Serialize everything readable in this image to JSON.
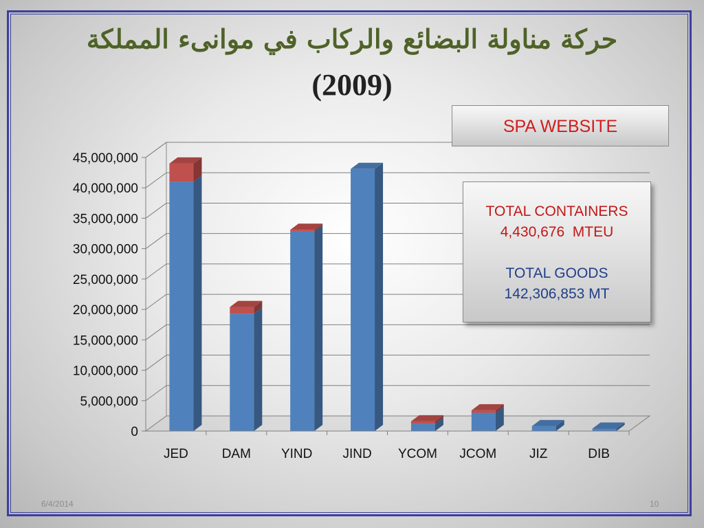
{
  "slide": {
    "title": "حركة مناولة البضائع والركاب في موانىء المملكة",
    "year": "(2009)",
    "footer_date": "6/4/2014",
    "page_number": "10"
  },
  "boxes": {
    "spa": "SPA WEBSITE",
    "containers_label": "TOTAL CONTAINERS",
    "containers_value": "4,430,676  MTEU",
    "goods_label": "TOTAL GOODS",
    "goods_value": "142,306,853 MT"
  },
  "colors": {
    "title": "#4f6228",
    "series_blue": "#4f81bd",
    "series_red": "#c0504d",
    "frame": "#3b3f9e"
  },
  "chart_data": {
    "type": "bar",
    "stacked": true,
    "three_d": true,
    "categories": [
      "JED",
      "DAM",
      "YIND",
      "JIND",
      "YCOM",
      "JCOM",
      "JIZ",
      "DIB"
    ],
    "series": [
      {
        "color": "#4f81bd",
        "values": [
          41000000,
          19300000,
          32800000,
          43100000,
          1200000,
          3000000,
          800000,
          400000
        ]
      },
      {
        "color": "#c0504d",
        "values": [
          3000000,
          1100000,
          300000,
          0,
          400000,
          400000,
          0,
          0
        ]
      }
    ],
    "ylim": [
      0,
      45000000
    ],
    "yticks": [
      "0",
      "5,000,000",
      "10,000,000",
      "15,000,000",
      "20,000,000",
      "25,000,000",
      "30,000,000",
      "35,000,000",
      "40,000,000",
      "45,000,000"
    ],
    "grid": true
  }
}
